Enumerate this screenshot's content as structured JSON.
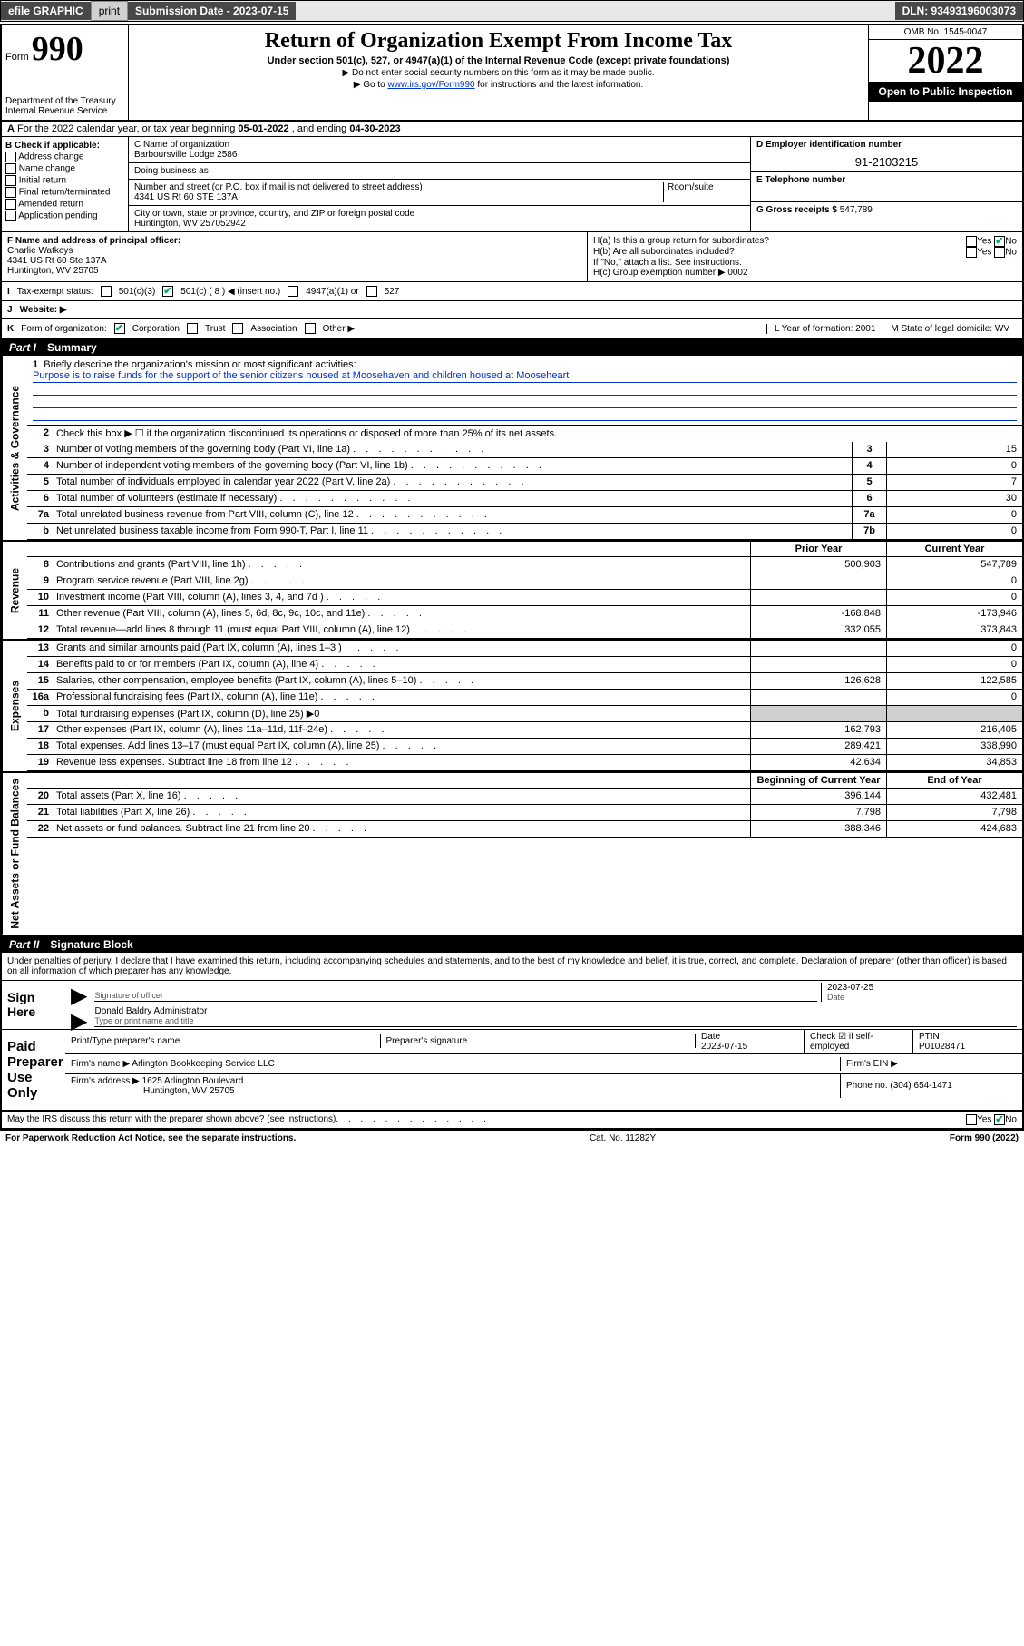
{
  "top_bar": {
    "efile": "efile GRAPHIC",
    "print": "print",
    "submission_label": "Submission Date - 2023-07-15",
    "dln": "DLN: 93493196003073"
  },
  "header": {
    "form_prefix": "Form",
    "form_number": "990",
    "dept": "Department of the Treasury",
    "irs": "Internal Revenue Service",
    "title": "Return of Organization Exempt From Income Tax",
    "subtitle": "Under section 501(c), 527, or 4947(a)(1) of the Internal Revenue Code (except private foundations)",
    "note1": "▶ Do not enter social security numbers on this form as it may be made public.",
    "note2_pre": "▶ Go to ",
    "note2_link": "www.irs.gov/Form990",
    "note2_post": " for instructions and the latest information.",
    "omb": "OMB No. 1545-0047",
    "year": "2022",
    "open_public": "Open to Public Inspection"
  },
  "row_a": {
    "label_a": "A",
    "text": "For the 2022 calendar year, or tax year beginning ",
    "begin": "05-01-2022",
    "mid": " , and ending ",
    "end": "04-30-2023"
  },
  "col_b": {
    "label": "B Check if applicable:",
    "items": [
      "Address change",
      "Name change",
      "Initial return",
      "Final return/terminated",
      "Amended return",
      "Application pending"
    ]
  },
  "org": {
    "name_label": "C Name of organization",
    "name": "Barboursville Lodge 2586",
    "dba_label": "Doing business as",
    "dba": "",
    "street_label": "Number and street (or P.O. box if mail is not delivered to street address)",
    "suite_label": "Room/suite",
    "street": "4341 US Rt 60 STE 137A",
    "city_label": "City or town, state or province, country, and ZIP or foreign postal code",
    "city": "Huntington, WV  257052942"
  },
  "col_d": {
    "ein_label": "D Employer identification number",
    "ein": "91-2103215",
    "phone_label": "E Telephone number",
    "phone": "",
    "gross_label": "G Gross receipts $",
    "gross": "547,789"
  },
  "officer": {
    "label": "F Name and address of principal officer:",
    "name": "Charlie Watkeys",
    "addr1": "4341 US Rt 60 Ste 137A",
    "addr2": "Huntington, WV  25705"
  },
  "h_section": {
    "ha_label": "H(a) Is this a group return for subordinates?",
    "ha_yes": "Yes",
    "ha_no": "No",
    "hb_label": "H(b) Are all subordinates included?",
    "hb_yes": "Yes",
    "hb_no": "No",
    "hb_note": "If \"No,\" attach a list. See instructions.",
    "hc_label": "H(c) Group exemption number ▶",
    "hc_val": "0002"
  },
  "status": {
    "label_i": "I",
    "label": "Tax-exempt status:",
    "opt1": "501(c)(3)",
    "opt2": "501(c) ( 8 ) ◀ (insert no.)",
    "opt3": "4947(a)(1) or",
    "opt4": "527"
  },
  "website": {
    "label_j": "J",
    "label": "Website: ▶",
    "value": ""
  },
  "form_org": {
    "label_k": "K",
    "label": "Form of organization:",
    "corp": "Corporation",
    "trust": "Trust",
    "assoc": "Association",
    "other": "Other ▶",
    "year_label": "L Year of formation:",
    "year": "2001",
    "state_label": "M State of legal domicile:",
    "state": "WV"
  },
  "part1": {
    "part": "Part I",
    "title": "Summary",
    "line1_label": "1",
    "line1_text": "Briefly describe the organization's mission or most significant activities:",
    "mission": "Purpose is to raise funds for the support of the senior citizens housed at Moosehaven and children housed at Mooseheart",
    "line2_label": "2",
    "line2_text": "Check this box ▶ ☐ if the organization discontinued its operations or disposed of more than 25% of its net assets.",
    "side_gov": "Activities & Governance",
    "side_rev": "Revenue",
    "side_exp": "Expenses",
    "side_net": "Net Assets or Fund Balances",
    "col_prior": "Prior Year",
    "col_current": "Current Year",
    "col_begin": "Beginning of Current Year",
    "col_end": "End of Year",
    "lines_gov": [
      {
        "n": "3",
        "d": "Number of voting members of the governing body (Part VI, line 1a)",
        "box": "3",
        "v": "15"
      },
      {
        "n": "4",
        "d": "Number of independent voting members of the governing body (Part VI, line 1b)",
        "box": "4",
        "v": "0"
      },
      {
        "n": "5",
        "d": "Total number of individuals employed in calendar year 2022 (Part V, line 2a)",
        "box": "5",
        "v": "7"
      },
      {
        "n": "6",
        "d": "Total number of volunteers (estimate if necessary)",
        "box": "6",
        "v": "30"
      },
      {
        "n": "7a",
        "d": "Total unrelated business revenue from Part VIII, column (C), line 12",
        "box": "7a",
        "v": "0"
      },
      {
        "n": "b",
        "d": "Net unrelated business taxable income from Form 990-T, Part I, line 11",
        "box": "7b",
        "v": "0"
      }
    ],
    "lines_rev": [
      {
        "n": "8",
        "d": "Contributions and grants (Part VIII, line 1h)",
        "p": "500,903",
        "c": "547,789"
      },
      {
        "n": "9",
        "d": "Program service revenue (Part VIII, line 2g)",
        "p": "",
        "c": "0"
      },
      {
        "n": "10",
        "d": "Investment income (Part VIII, column (A), lines 3, 4, and 7d )",
        "p": "",
        "c": "0"
      },
      {
        "n": "11",
        "d": "Other revenue (Part VIII, column (A), lines 5, 6d, 8c, 9c, 10c, and 11e)",
        "p": "-168,848",
        "c": "-173,946"
      },
      {
        "n": "12",
        "d": "Total revenue—add lines 8 through 11 (must equal Part VIII, column (A), line 12)",
        "p": "332,055",
        "c": "373,843"
      }
    ],
    "lines_exp": [
      {
        "n": "13",
        "d": "Grants and similar amounts paid (Part IX, column (A), lines 1–3 )",
        "p": "",
        "c": "0"
      },
      {
        "n": "14",
        "d": "Benefits paid to or for members (Part IX, column (A), line 4)",
        "p": "",
        "c": "0"
      },
      {
        "n": "15",
        "d": "Salaries, other compensation, employee benefits (Part IX, column (A), lines 5–10)",
        "p": "126,628",
        "c": "122,585"
      },
      {
        "n": "16a",
        "d": "Professional fundraising fees (Part IX, column (A), line 11e)",
        "p": "",
        "c": "0"
      },
      {
        "n": "b",
        "d": "Total fundraising expenses (Part IX, column (D), line 25) ▶0",
        "p": null,
        "c": null,
        "gray": true
      },
      {
        "n": "17",
        "d": "Other expenses (Part IX, column (A), lines 11a–11d, 11f–24e)",
        "p": "162,793",
        "c": "216,405"
      },
      {
        "n": "18",
        "d": "Total expenses. Add lines 13–17 (must equal Part IX, column (A), line 25)",
        "p": "289,421",
        "c": "338,990"
      },
      {
        "n": "19",
        "d": "Revenue less expenses. Subtract line 18 from line 12",
        "p": "42,634",
        "c": "34,853"
      }
    ],
    "lines_net": [
      {
        "n": "20",
        "d": "Total assets (Part X, line 16)",
        "p": "396,144",
        "c": "432,481"
      },
      {
        "n": "21",
        "d": "Total liabilities (Part X, line 26)",
        "p": "7,798",
        "c": "7,798"
      },
      {
        "n": "22",
        "d": "Net assets or fund balances. Subtract line 21 from line 20",
        "p": "388,346",
        "c": "424,683"
      }
    ]
  },
  "part2": {
    "part": "Part II",
    "title": "Signature Block",
    "jurat": "Under penalties of perjury, I declare that I have examined this return, including accompanying schedules and statements, and to the best of my knowledge and belief, it is true, correct, and complete. Declaration of preparer (other than officer) is based on all information of which preparer has any knowledge.",
    "sign_here": "Sign Here",
    "sig_officer": "Signature of officer",
    "sig_date_label": "Date",
    "sig_date": "2023-07-25",
    "officer_name": "Donald Baldry  Administrator",
    "type_name": "Type or print name and title",
    "paid_label": "Paid Preparer Use Only",
    "prep_name_label": "Print/Type preparer's name",
    "prep_sig_label": "Preparer's signature",
    "date_label": "Date",
    "date_val": "2023-07-15",
    "check_self": "Check ☑ if self-employed",
    "ptin_label": "PTIN",
    "ptin": "P01028471",
    "firm_name_label": "Firm's name ▶",
    "firm_name": "Arlington Bookkeeping Service LLC",
    "firm_ein_label": "Firm's EIN ▶",
    "firm_addr_label": "Firm's address ▶",
    "firm_addr1": "1625 Arlington Boulevard",
    "firm_addr2": "Huntington, WV  25705",
    "phone_label": "Phone no.",
    "phone": "(304) 654-1471",
    "discuss": "May the IRS discuss this return with the preparer shown above? (see instructions)",
    "discuss_yes": "Yes",
    "discuss_no": "No"
  },
  "footer": {
    "left": "For Paperwork Reduction Act Notice, see the separate instructions.",
    "mid": "Cat. No. 11282Y",
    "right": "Form 990 (2022)"
  }
}
